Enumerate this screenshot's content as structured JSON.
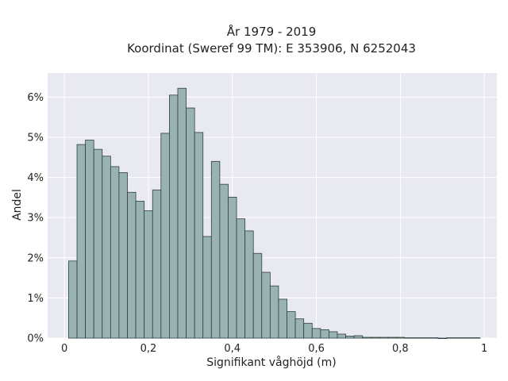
{
  "chart_data": {
    "type": "bar",
    "title": "År 1979 - 2019",
    "subtitle": "Koordinat (Sweref 99 TM): E 353906, N 6252043",
    "xlabel": "Signifikant våghöjd (m)",
    "ylabel": "Andel",
    "xlim": [
      -0.04,
      1.03
    ],
    "ylim": [
      0,
      0.066
    ],
    "x_ticks": [
      0,
      0.2,
      0.4,
      0.6,
      0.8,
      1.0
    ],
    "x_tick_labels": [
      "0",
      "0,2",
      "0,4",
      "0,6",
      "0,8",
      "1"
    ],
    "y_ticks": [
      0,
      0.01,
      0.02,
      0.03,
      0.04,
      0.05,
      0.06
    ],
    "y_tick_labels": [
      "0%",
      "1%",
      "2%",
      "3%",
      "4%",
      "5%",
      "6%"
    ],
    "grid": true,
    "legend": "none",
    "bin_width": 0.02,
    "bin_starts": [
      0.01,
      0.03,
      0.05,
      0.07,
      0.09,
      0.11,
      0.13,
      0.15,
      0.17,
      0.19,
      0.21,
      0.23,
      0.25,
      0.27,
      0.29,
      0.31,
      0.33,
      0.35,
      0.37,
      0.39,
      0.41,
      0.43,
      0.45,
      0.47,
      0.49,
      0.51,
      0.53,
      0.55,
      0.57,
      0.59,
      0.61,
      0.63,
      0.65,
      0.67,
      0.69,
      0.71,
      0.73,
      0.75,
      0.77,
      0.79,
      0.81,
      0.83,
      0.85,
      0.87,
      0.89,
      0.91,
      0.93,
      0.95,
      0.97
    ],
    "values": [
      0.0192,
      0.0482,
      0.0493,
      0.047,
      0.0453,
      0.0427,
      0.0412,
      0.0363,
      0.0341,
      0.0317,
      0.0369,
      0.051,
      0.0605,
      0.0622,
      0.0573,
      0.0512,
      0.0253,
      0.044,
      0.0383,
      0.0351,
      0.0297,
      0.0267,
      0.0211,
      0.0164,
      0.013,
      0.0097,
      0.0066,
      0.0048,
      0.0037,
      0.0024,
      0.0021,
      0.0016,
      0.001,
      0.0005,
      0.0006,
      0.0002,
      0.0002,
      0.0002,
      0.0002,
      0.0002,
      0.0001,
      0.0001,
      0.0001,
      0.0001,
      0.0,
      0.0001,
      0.0001,
      0.0001,
      0.0001
    ],
    "colors": {
      "bar_fill": "#99b3b2",
      "bar_edge": "#2f3f3e",
      "plot_bg": "#e9e9f1",
      "grid": "#ffffff"
    }
  }
}
